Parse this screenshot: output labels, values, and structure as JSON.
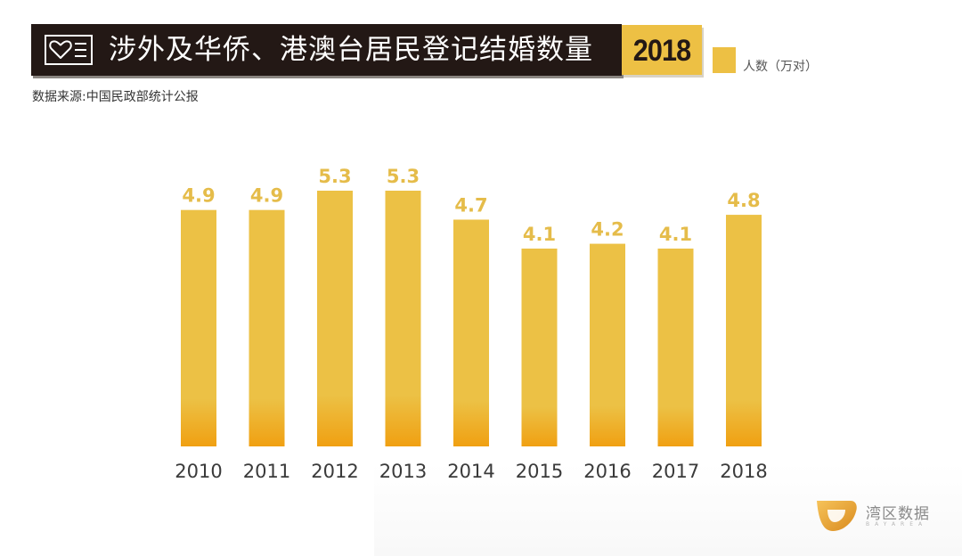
{
  "header": {
    "title": "涉外及华侨、港澳台居民登记结婚数量",
    "year_badge": "2018",
    "icon": "heart-card-icon"
  },
  "source": "数据来源:中国民政部统计公报",
  "legend": {
    "label": "人数（万对）",
    "color": "#EDC044"
  },
  "logo": {
    "name": "湾区数据",
    "subtitle": "BAYAREA"
  },
  "colors": {
    "bar_top": "#ECC145",
    "bar_bottom": "#F0A012",
    "label": "#E5BC4A",
    "title_bg": "#231815",
    "badge": "#EDC044"
  },
  "chart_data": {
    "type": "bar",
    "title": "涉外及华侨、港澳台居民登记结婚数量",
    "xlabel": "",
    "ylabel": "人数（万对）",
    "categories": [
      "2010",
      "2011",
      "2012",
      "2013",
      "2014",
      "2015",
      "2016",
      "2017",
      "2018"
    ],
    "series": [
      {
        "name": "人数（万对）",
        "values": [
          4.9,
          4.9,
          5.3,
          5.3,
          4.7,
          4.1,
          4.2,
          4.1,
          4.8
        ]
      }
    ],
    "data_labels": [
      "4.9",
      "4.9",
      "5.3",
      "5.3",
      "4.7",
      "4.1",
      "4.2",
      "4.1",
      "4.8"
    ],
    "ylim": [
      0,
      5.3
    ],
    "grid": false,
    "legend_position": "top-right"
  }
}
